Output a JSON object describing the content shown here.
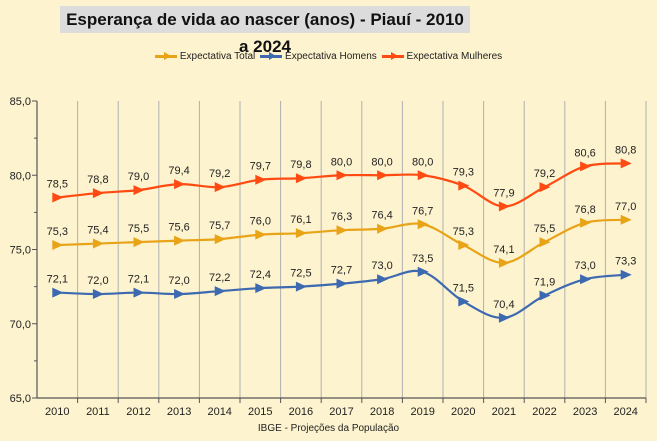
{
  "chart_data": {
    "type": "line",
    "title": "Esperança de vida ao nascer (anos) - Piauí - 2010 a 2024",
    "categories": [
      "2010",
      "2011",
      "2012",
      "2013",
      "2014",
      "2015",
      "2016",
      "2017",
      "2018",
      "2019",
      "2020",
      "2021",
      "2022",
      "2023",
      "2024"
    ],
    "ylim": [
      65,
      85
    ],
    "yticks": [
      "65,0",
      "70,0",
      "75,0",
      "80,0",
      "85,0"
    ],
    "grid": "vertical",
    "legend_position": "top",
    "series": [
      {
        "name": "Expectativa Total",
        "color": "#e8a317",
        "values": [
          75.3,
          75.4,
          75.5,
          75.6,
          75.7,
          76.0,
          76.1,
          76.3,
          76.4,
          76.7,
          75.3,
          74.1,
          75.5,
          76.8,
          77.0
        ]
      },
      {
        "name": "Expectativa Homens",
        "color": "#3d69b0",
        "values": [
          72.1,
          72.0,
          72.1,
          72.0,
          72.2,
          72.4,
          72.5,
          72.7,
          73.0,
          73.5,
          71.5,
          70.4,
          71.9,
          73.0,
          73.3
        ]
      },
      {
        "name": "Expectativa Mulheres",
        "color": "#ff4a12",
        "values": [
          78.5,
          78.8,
          79.0,
          79.4,
          79.2,
          79.7,
          79.8,
          80.0,
          80.0,
          80.0,
          79.3,
          77.9,
          79.2,
          80.6,
          80.8
        ]
      }
    ],
    "source": "IBGE - Projeções da População"
  }
}
